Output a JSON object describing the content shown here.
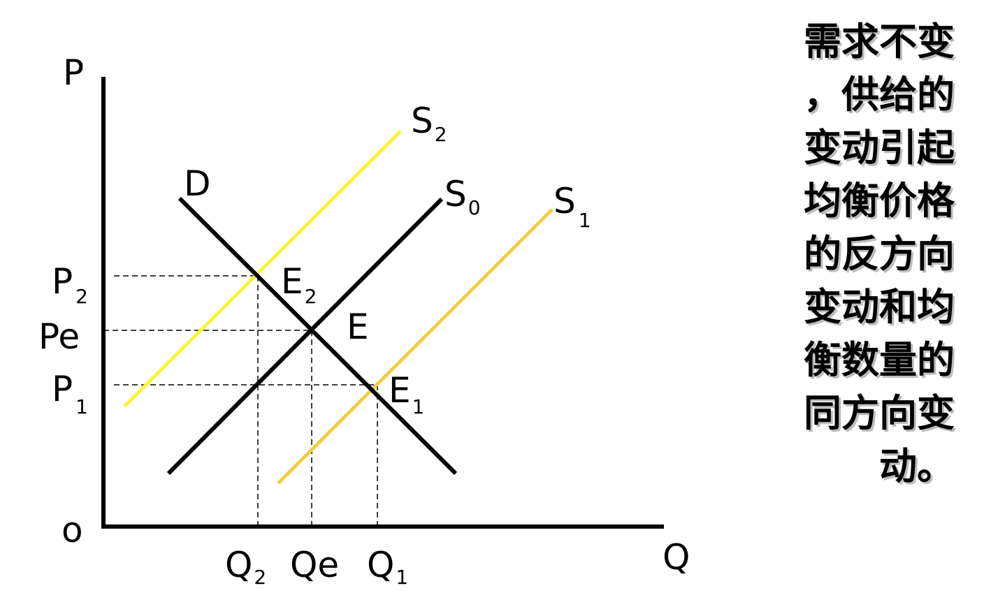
{
  "axes": {
    "y_label": "P",
    "x_label": "Q",
    "origin_label": "o"
  },
  "curves": {
    "demand": {
      "label": "D",
      "color": "#000000"
    },
    "s0": {
      "label": "S",
      "sub": "0",
      "color": "#000000"
    },
    "s1": {
      "label": "S",
      "sub": "1",
      "color": "#f2cd44"
    },
    "s2": {
      "label": "S",
      "sub": "2",
      "color": "#f8f53a"
    }
  },
  "points": {
    "e": {
      "label": "E"
    },
    "e1": {
      "label": "E",
      "sub": "1"
    },
    "e2": {
      "label": "E",
      "sub": "2"
    }
  },
  "price_labels": {
    "p2": {
      "label": "P",
      "sub": "2"
    },
    "pe": {
      "label": "Pe"
    },
    "p1": {
      "label": "P",
      "sub": "1"
    }
  },
  "quantity_labels": {
    "q2": {
      "label": "Q",
      "sub": "2"
    },
    "qe": {
      "label": "Qe"
    },
    "q1": {
      "label": "Q",
      "sub": "1"
    }
  },
  "side_text": [
    "需求不变",
    "，供给的",
    "变动引起",
    "均衡价格",
    "的反方向",
    "变动和均",
    "衡数量的",
    "同方向变",
    "动。"
  ]
}
